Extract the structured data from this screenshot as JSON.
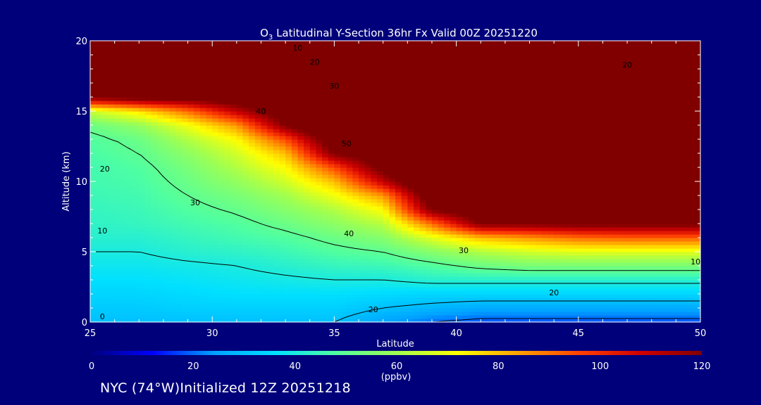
{
  "title": {
    "prefix": "O",
    "subscript": "3",
    "rest": " Latitudinal Y-Section 36hr  Fx Valid 00Z 20251220"
  },
  "footer": {
    "location": "NYC (74°W)",
    "initialized": "Initialized 12Z 20251218"
  },
  "colors": {
    "background": "#00007a",
    "plot_background": "#7a0000",
    "axes": "#ffffff",
    "contour": "#000000"
  },
  "chart_data": {
    "type": "heatmap",
    "title": "O3 Latitudinal Y-Section 36hr  Fx Valid 00Z 20251220",
    "xlabel": "Latitude",
    "ylabel": "Altitude (km)",
    "xlim": [
      25,
      50
    ],
    "ylim": [
      0,
      20
    ],
    "x_ticks": [
      25,
      30,
      35,
      40,
      45,
      50
    ],
    "y_ticks": [
      0,
      5,
      10,
      15,
      20
    ],
    "colorbar": {
      "label": "(ppbv)",
      "range": [
        0,
        120
      ],
      "ticks": [
        0,
        20,
        40,
        60,
        80,
        100,
        120
      ],
      "colormap": [
        "#000080",
        "#0000ff",
        "#00a0ff",
        "#00e0ff",
        "#50ffa0",
        "#a0ff50",
        "#ffff00",
        "#ffa000",
        "#ff4000",
        "#d00000",
        "#800000"
      ]
    },
    "profile_lat": [
      25,
      27,
      29,
      31,
      33,
      35,
      37,
      39,
      41,
      43,
      45,
      47,
      50
    ],
    "profile_alt": [
      0,
      1,
      2,
      3,
      4,
      5,
      6,
      7,
      8,
      9,
      10,
      11,
      12,
      13,
      14,
      15,
      16,
      17,
      18,
      19,
      20
    ],
    "ozone_ppbv_by_lat": [
      [
        30,
        32,
        34,
        36,
        38,
        40,
        42,
        43,
        44,
        45,
        46,
        46,
        47,
        48,
        52,
        65,
        120,
        140,
        150,
        160,
        170
      ],
      [
        30,
        32,
        34,
        36,
        38,
        40,
        42,
        44,
        45,
        46,
        47,
        48,
        50,
        52,
        58,
        75,
        125,
        140,
        150,
        160,
        170
      ],
      [
        30,
        33,
        35,
        37,
        39,
        42,
        44,
        46,
        48,
        50,
        52,
        54,
        57,
        62,
        70,
        90,
        125,
        140,
        150,
        160,
        170
      ],
      [
        30,
        33,
        36,
        38,
        40,
        43,
        46,
        48,
        51,
        54,
        58,
        62,
        66,
        72,
        85,
        110,
        130,
        140,
        150,
        160,
        170
      ],
      [
        30,
        33,
        36,
        39,
        42,
        45,
        48,
        52,
        56,
        60,
        66,
        72,
        80,
        95,
        120,
        130,
        135,
        140,
        150,
        160,
        170
      ],
      [
        30,
        33,
        36,
        40,
        44,
        48,
        52,
        57,
        62,
        70,
        80,
        95,
        120,
        130,
        140,
        145,
        150,
        155,
        160,
        165,
        170
      ],
      [
        25,
        30,
        35,
        40,
        45,
        50,
        56,
        63,
        72,
        85,
        110,
        125,
        130,
        140,
        145,
        150,
        155,
        160,
        165,
        170,
        175
      ],
      [
        20,
        28,
        34,
        42,
        48,
        56,
        68,
        90,
        120,
        130,
        140,
        145,
        150,
        155,
        160,
        165,
        170,
        175,
        180,
        185,
        190
      ],
      [
        18,
        26,
        34,
        42,
        52,
        62,
        80,
        120,
        130,
        140,
        145,
        150,
        155,
        160,
        165,
        170,
        175,
        180,
        185,
        190,
        195
      ],
      [
        18,
        26,
        34,
        42,
        54,
        66,
        85,
        120,
        130,
        140,
        145,
        150,
        155,
        160,
        165,
        170,
        175,
        180,
        185,
        190,
        195
      ],
      [
        18,
        26,
        34,
        42,
        54,
        68,
        90,
        122,
        130,
        140,
        145,
        150,
        155,
        160,
        165,
        170,
        175,
        180,
        185,
        190,
        195
      ],
      [
        18,
        26,
        34,
        42,
        54,
        68,
        92,
        122,
        130,
        140,
        145,
        150,
        155,
        160,
        165,
        170,
        175,
        180,
        185,
        190,
        195
      ],
      [
        18,
        26,
        34,
        42,
        54,
        68,
        92,
        122,
        130,
        140,
        145,
        150,
        155,
        160,
        165,
        170,
        175,
        180,
        185,
        190,
        195
      ]
    ],
    "contour_levels_ppbv": [
      0,
      10,
      20,
      30,
      40,
      50
    ],
    "contour_labels": [
      {
        "text": "0",
        "lat": 25.5,
        "alt": 0.4
      },
      {
        "text": "10",
        "lat": 25.5,
        "alt": 6.5
      },
      {
        "text": "20",
        "lat": 25.6,
        "alt": 10.9
      },
      {
        "text": "30",
        "lat": 29.3,
        "alt": 8.5
      },
      {
        "text": "40",
        "lat": 35.6,
        "alt": 6.3
      },
      {
        "text": "30",
        "lat": 40.3,
        "alt": 5.1
      },
      {
        "text": "20",
        "lat": 36.6,
        "alt": 0.9
      },
      {
        "text": "20",
        "lat": 44.0,
        "alt": 2.1
      },
      {
        "text": "10",
        "lat": 49.8,
        "alt": 4.3
      },
      {
        "text": "10",
        "lat": 33.5,
        "alt": 19.5
      },
      {
        "text": "20",
        "lat": 34.2,
        "alt": 18.5
      },
      {
        "text": "30",
        "lat": 35.0,
        "alt": 16.8
      },
      {
        "text": "40",
        "lat": 32.0,
        "alt": 15.0
      },
      {
        "text": "50",
        "lat": 35.5,
        "alt": 12.7
      },
      {
        "text": "20",
        "lat": 47.0,
        "alt": 18.3
      }
    ]
  }
}
